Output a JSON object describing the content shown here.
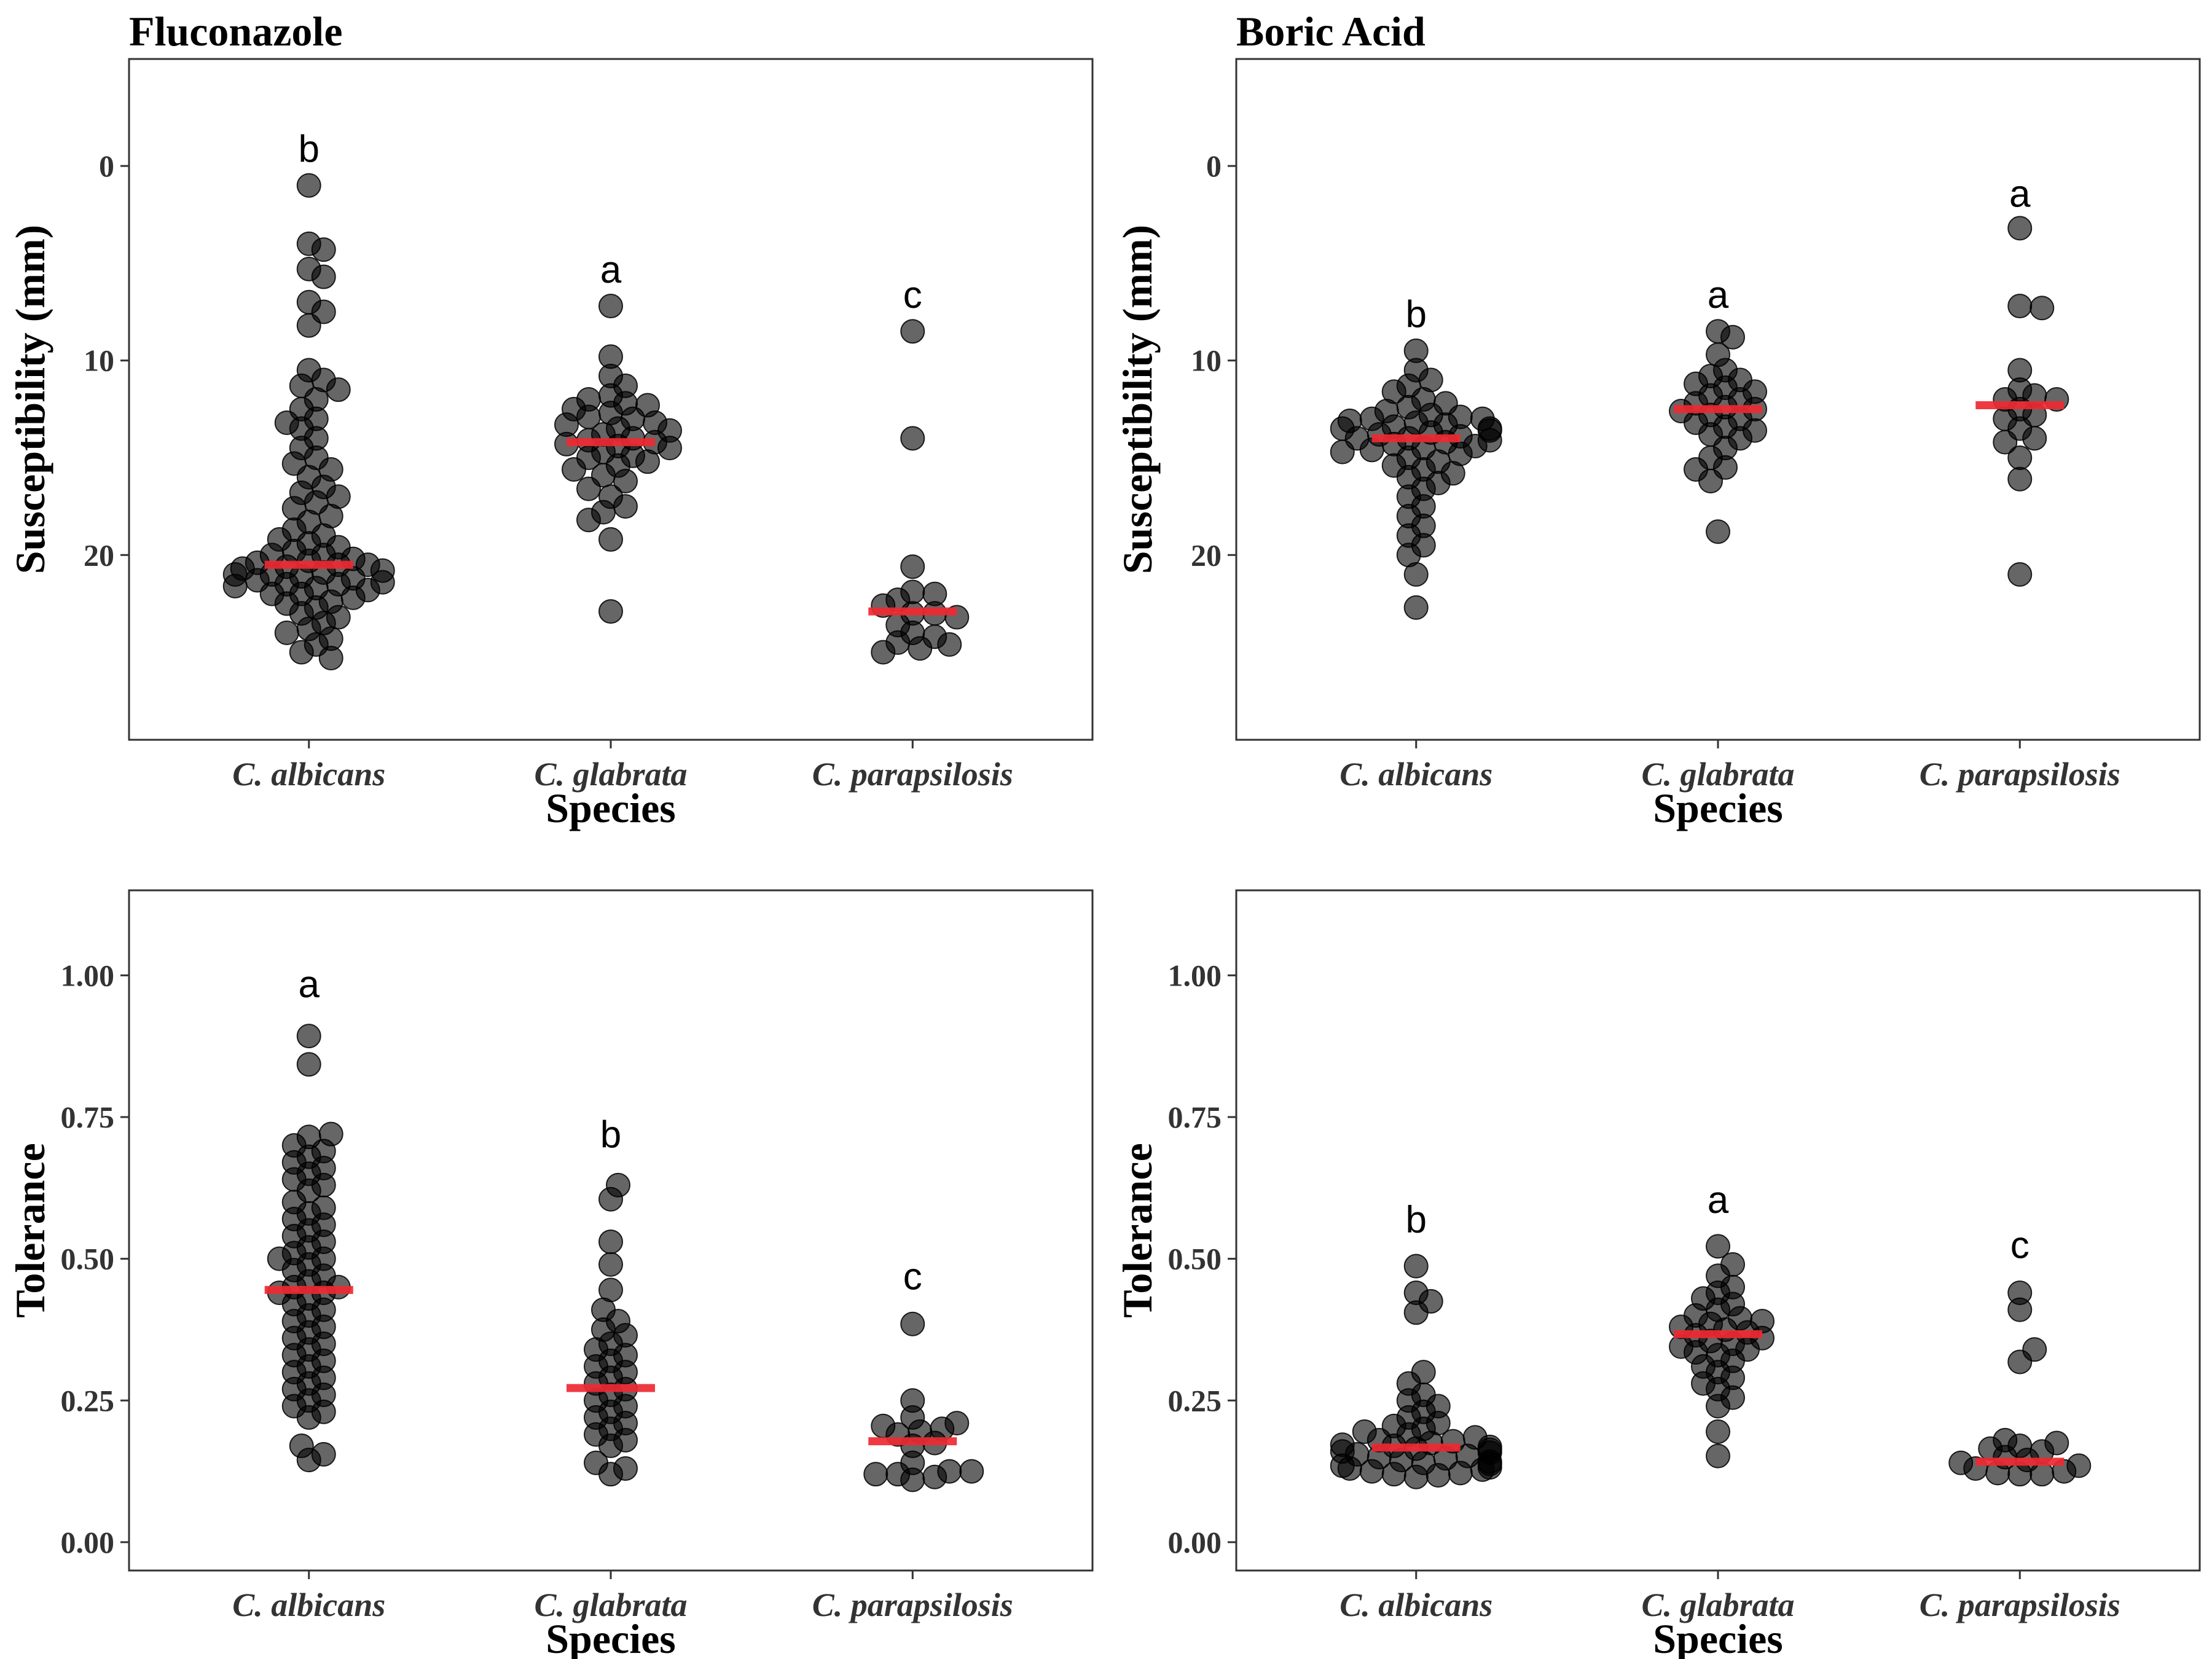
{
  "chart_data": [
    {
      "type": "scatter",
      "title": "Fluconazole",
      "xlabel": "Species",
      "ylabel": "Susceptibility (mm)",
      "categories": [
        "C. albicans",
        "C. glabrata",
        "C. parapsilosis"
      ],
      "y_reversed": true,
      "ylim": [
        29.5,
        -5.5
      ],
      "yticks": [
        {
          "value": 0,
          "label": "0"
        },
        {
          "value": 10,
          "label": "10"
        },
        {
          "value": 20,
          "label": "20"
        }
      ],
      "grid": false,
      "letters": [
        {
          "category": "C. albicans",
          "letter": "b",
          "y": -0.9
        },
        {
          "category": "C. glabrata",
          "letter": "a",
          "y": 5.3
        },
        {
          "category": "C. parapsilosis",
          "letter": "c",
          "y": 6.6
        }
      ],
      "medians": [
        20.5,
        14.2,
        22.9
      ],
      "series": [
        {
          "category": "C. albicans",
          "values": [
            1,
            4,
            4.3,
            5.3,
            5.7,
            7.0,
            7.5,
            8.2,
            10.5,
            11.0,
            11.3,
            11.5,
            12.0,
            12.5,
            13.0,
            13.2,
            13.5,
            14.0,
            14.5,
            15.0,
            15.3,
            15.6,
            16.0,
            16.5,
            16.8,
            17.0,
            17.3,
            17.6,
            18.0,
            18.3,
            18.7,
            19.0,
            19.2,
            19.4,
            19.6,
            19.8,
            20.0,
            20.0,
            20.2,
            20.3,
            20.4,
            20.5,
            20.5,
            20.6,
            20.7,
            20.8,
            20.9,
            21.0,
            21.0,
            21.1,
            21.2,
            21.3,
            21.4,
            21.5,
            21.5,
            21.6,
            21.7,
            21.8,
            22.0,
            22.0,
            22.2,
            22.4,
            22.5,
            22.7,
            23.0,
            23.2,
            23.5,
            23.8,
            24.0,
            24.3,
            24.6,
            25.0,
            25.3
          ]
        },
        {
          "category": "C. glabrata",
          "values": [
            7.2,
            9.8,
            10.8,
            11.3,
            11.8,
            12.0,
            12.2,
            12.3,
            12.5,
            12.7,
            12.9,
            13.0,
            13.2,
            13.3,
            13.5,
            13.6,
            13.8,
            14.0,
            14.1,
            14.2,
            14.3,
            14.4,
            14.5,
            14.7,
            14.9,
            15.0,
            15.2,
            15.4,
            15.6,
            15.9,
            16.2,
            16.6,
            17.0,
            17.5,
            17.8,
            18.2,
            19.2,
            22.9
          ]
        },
        {
          "category": "C. parapsilosis",
          "values": [
            8.5,
            14.0,
            20.6,
            21.9,
            22.0,
            22.3,
            22.6,
            23.0,
            23.0,
            23.2,
            23.6,
            24.0,
            24.2,
            24.5,
            24.6,
            24.8,
            25.0
          ]
        }
      ]
    },
    {
      "type": "scatter",
      "title": "Boric Acid",
      "xlabel": "Species",
      "ylabel": "Susceptibility (mm)",
      "categories": [
        "C. albicans",
        "C. glabrata",
        "C. parapsilosis"
      ],
      "y_reversed": true,
      "ylim": [
        29.5,
        -5.5
      ],
      "yticks": [
        {
          "value": 0,
          "label": "0"
        },
        {
          "value": 10,
          "label": "10"
        },
        {
          "value": 20,
          "label": "20"
        }
      ],
      "grid": false,
      "letters": [
        {
          "category": "C. albicans",
          "letter": "b",
          "y": 7.6
        },
        {
          "category": "C. glabrata",
          "letter": "a",
          "y": 6.6
        },
        {
          "category": "C. parapsilosis",
          "letter": "a",
          "y": 1.4
        }
      ],
      "medians": [
        14.0,
        12.5,
        12.3
      ],
      "series": [
        {
          "category": "C. albicans",
          "values": [
            9.5,
            10.5,
            11.0,
            11.3,
            11.6,
            12.0,
            12.2,
            12.4,
            12.6,
            12.8,
            12.9,
            13.0,
            13.0,
            13.1,
            13.2,
            13.3,
            13.4,
            13.5,
            13.5,
            13.6,
            13.7,
            13.8,
            13.9,
            14.0,
            14.0,
            14.1,
            14.2,
            14.3,
            14.4,
            14.5,
            14.6,
            14.7,
            14.8,
            15.0,
            15.2,
            15.4,
            15.6,
            15.8,
            16.0,
            16.3,
            16.6,
            17.0,
            17.5,
            18.0,
            18.5,
            19.0,
            19.5,
            20.0,
            21.0,
            22.7
          ]
        },
        {
          "category": "C. glabrata",
          "values": [
            8.5,
            8.8,
            9.7,
            10.5,
            10.8,
            11.0,
            11.2,
            11.4,
            11.6,
            11.8,
            12.0,
            12.2,
            12.4,
            12.5,
            12.6,
            12.8,
            13.0,
            13.2,
            13.4,
            13.6,
            13.8,
            14.0,
            14.5,
            15.0,
            15.5,
            15.6,
            16.2,
            18.8
          ]
        },
        {
          "category": "C. parapsilosis",
          "values": [
            3.2,
            7.2,
            7.3,
            10.5,
            11.5,
            11.8,
            12.0,
            12.0,
            12.5,
            12.8,
            13.0,
            13.5,
            14.0,
            14.2,
            15.0,
            16.1,
            21.0
          ]
        }
      ]
    },
    {
      "type": "scatter",
      "title": "",
      "xlabel": "Species",
      "ylabel": "Tolerance",
      "categories": [
        "C. albicans",
        "C. glabrata",
        "C. parapsilosis"
      ],
      "y_reversed": false,
      "ylim": [
        -0.05,
        1.15
      ],
      "yticks": [
        {
          "value": 0,
          "label": "0.00"
        },
        {
          "value": 0.25,
          "label": "0.25"
        },
        {
          "value": 0.5,
          "label": "0.50"
        },
        {
          "value": 0.75,
          "label": "0.75"
        },
        {
          "value": 1.0,
          "label": "1.00"
        }
      ],
      "grid": false,
      "letters": [
        {
          "category": "C. albicans",
          "letter": "a",
          "y": 0.985
        },
        {
          "category": "C. glabrata",
          "letter": "b",
          "y": 0.72
        },
        {
          "category": "C. parapsilosis",
          "letter": "c",
          "y": 0.47
        }
      ],
      "medians": [
        0.445,
        0.272,
        0.178
      ],
      "series": [
        {
          "category": "C. albicans",
          "values": [
            0.893,
            0.843,
            0.72,
            0.715,
            0.7,
            0.69,
            0.68,
            0.67,
            0.66,
            0.65,
            0.64,
            0.63,
            0.62,
            0.6,
            0.59,
            0.58,
            0.57,
            0.56,
            0.55,
            0.54,
            0.53,
            0.52,
            0.51,
            0.5,
            0.5,
            0.49,
            0.48,
            0.47,
            0.46,
            0.45,
            0.45,
            0.44,
            0.44,
            0.43,
            0.42,
            0.41,
            0.4,
            0.39,
            0.38,
            0.37,
            0.36,
            0.35,
            0.34,
            0.33,
            0.32,
            0.31,
            0.3,
            0.29,
            0.28,
            0.27,
            0.26,
            0.25,
            0.24,
            0.23,
            0.22,
            0.17,
            0.155,
            0.145
          ]
        },
        {
          "category": "C. glabrata",
          "values": [
            0.63,
            0.605,
            0.53,
            0.49,
            0.445,
            0.41,
            0.39,
            0.375,
            0.365,
            0.35,
            0.34,
            0.33,
            0.32,
            0.31,
            0.3,
            0.29,
            0.28,
            0.27,
            0.26,
            0.25,
            0.24,
            0.23,
            0.22,
            0.21,
            0.2,
            0.19,
            0.18,
            0.17,
            0.14,
            0.13,
            0.12
          ]
        },
        {
          "category": "C. parapsilosis",
          "values": [
            0.385,
            0.25,
            0.22,
            0.21,
            0.205,
            0.2,
            0.195,
            0.19,
            0.175,
            0.17,
            0.14,
            0.125,
            0.125,
            0.12,
            0.12,
            0.115,
            0.11
          ]
        }
      ]
    },
    {
      "type": "scatter",
      "title": "",
      "xlabel": "Species",
      "ylabel": "Tolerance",
      "categories": [
        "C. albicans",
        "C. glabrata",
        "C. parapsilosis"
      ],
      "y_reversed": false,
      "ylim": [
        -0.05,
        1.15
      ],
      "yticks": [
        {
          "value": 0,
          "label": "0.00"
        },
        {
          "value": 0.25,
          "label": "0.25"
        },
        {
          "value": 0.5,
          "label": "0.50"
        },
        {
          "value": 0.75,
          "label": "0.75"
        },
        {
          "value": 1.0,
          "label": "1.00"
        }
      ],
      "grid": false,
      "letters": [
        {
          "category": "C. albicans",
          "letter": "b",
          "y": 0.57
        },
        {
          "category": "C. glabrata",
          "letter": "a",
          "y": 0.605
        },
        {
          "category": "C. parapsilosis",
          "letter": "c",
          "y": 0.525
        }
      ],
      "medians": [
        0.167,
        0.367,
        0.142
      ],
      "series": [
        {
          "category": "C. albicans",
          "values": [
            0.487,
            0.44,
            0.425,
            0.405,
            0.3,
            0.28,
            0.26,
            0.25,
            0.24,
            0.23,
            0.22,
            0.21,
            0.205,
            0.2,
            0.195,
            0.19,
            0.185,
            0.18,
            0.178,
            0.175,
            0.172,
            0.17,
            0.168,
            0.165,
            0.163,
            0.16,
            0.158,
            0.155,
            0.152,
            0.15,
            0.148,
            0.145,
            0.142,
            0.14,
            0.138,
            0.135,
            0.132,
            0.13,
            0.128,
            0.125,
            0.122,
            0.12,
            0.118,
            0.115
          ]
        },
        {
          "category": "C. glabrata",
          "values": [
            0.522,
            0.49,
            0.47,
            0.45,
            0.44,
            0.43,
            0.42,
            0.41,
            0.4,
            0.395,
            0.39,
            0.385,
            0.38,
            0.375,
            0.37,
            0.365,
            0.36,
            0.355,
            0.35,
            0.345,
            0.34,
            0.335,
            0.33,
            0.32,
            0.31,
            0.3,
            0.29,
            0.28,
            0.27,
            0.255,
            0.24,
            0.195,
            0.152
          ]
        },
        {
          "category": "C. parapsilosis",
          "values": [
            0.44,
            0.41,
            0.34,
            0.318,
            0.18,
            0.175,
            0.17,
            0.165,
            0.16,
            0.15,
            0.145,
            0.14,
            0.135,
            0.13,
            0.125,
            0.122,
            0.12,
            0.12
          ]
        }
      ]
    }
  ]
}
